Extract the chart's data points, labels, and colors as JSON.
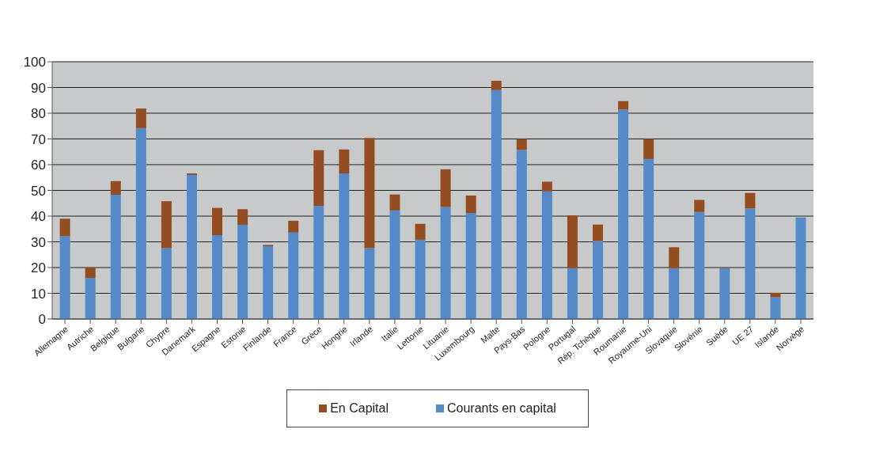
{
  "chart_data": {
    "type": "bar",
    "stacked": true,
    "categories": [
      "Allemagne",
      "Autriche",
      "Belgique",
      "Bulgarie",
      "Chypre",
      "Danemark",
      "Espagne",
      "Estonie",
      "Finlande",
      "France",
      "Grèce",
      "Hongrie",
      "Irlande",
      "Italie",
      "Lettonie",
      "Lituanie",
      "Luxembourg",
      "Malte",
      "Pays-Bas",
      "Pologne",
      "Portugal",
      "Rép. Tchèque",
      "Roumanie",
      "Royaume-Uni",
      "Slovaquie",
      "Slovénie",
      "Suède",
      "UE 27",
      "Islande",
      "Norvège"
    ],
    "series": [
      {
        "name": "Courants en capital",
        "color": "#558ac8",
        "values": [
          32.2,
          16,
          48.3,
          74.2,
          27.6,
          56,
          32.6,
          36.6,
          28.3,
          33.6,
          44,
          56.6,
          27.6,
          42.2,
          30.8,
          43.5,
          41.2,
          89,
          65.7,
          49.6,
          19.8,
          30.3,
          81.4,
          62.2,
          19.8,
          41.6,
          19.8,
          43,
          8.5,
          39.5
        ]
      },
      {
        "name": "En Capital",
        "color": "#944c21",
        "values": [
          6.8,
          4,
          5.3,
          7.6,
          18.2,
          0.6,
          10.6,
          6.1,
          0.5,
          4.6,
          21.6,
          9.3,
          42.8,
          6.2,
          6.2,
          14.7,
          6.8,
          3.6,
          4.3,
          3.8,
          20.4,
          6.4,
          3.3,
          7.8,
          8.1,
          4.7,
          0.2,
          6,
          1.7,
          0
        ]
      }
    ],
    "ylim": [
      0,
      100
    ],
    "yticks": [
      0,
      10,
      20,
      30,
      40,
      50,
      60,
      70,
      80,
      90,
      100
    ],
    "grid": "y",
    "legend": "bottom"
  }
}
